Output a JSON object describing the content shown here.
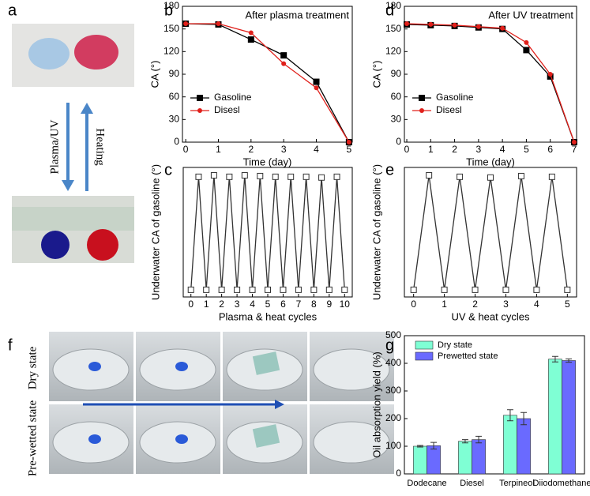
{
  "panel_labels": [
    "a",
    "b",
    "c",
    "d",
    "e",
    "f",
    "g"
  ],
  "photo_a": {
    "down_arrow": "Plasma/UV",
    "up_arrow": "Heating"
  },
  "photo_f": {
    "rows": [
      "Dry state",
      "Pre-wetted state"
    ]
  },
  "chart_data": [
    {
      "type": "line",
      "annotation": "After plasma treatment",
      "xlabel": "Time (day)",
      "ylabel": "CA (°)",
      "x": [
        0,
        1,
        2,
        3,
        4,
        5
      ],
      "xlim": [
        -0.1,
        5.1
      ],
      "xticks": [
        0,
        1,
        2,
        3,
        4,
        5
      ],
      "ylim": [
        0,
        180
      ],
      "yticks": [
        0,
        30,
        60,
        90,
        120,
        150,
        180
      ],
      "legend": "lower left",
      "series": [
        {
          "name": "Gasoline",
          "color": "#000000",
          "marker": "square",
          "values": [
            157,
            156,
            136,
            115,
            80,
            0
          ]
        },
        {
          "name": "Disesl",
          "color": "#e0201b",
          "marker": "circle",
          "values": [
            157,
            157,
            145,
            104,
            72,
            0
          ]
        }
      ]
    },
    {
      "type": "line",
      "annotation": "After UV treatment",
      "xlabel": "Time (day)",
      "ylabel": "CA (°)",
      "x": [
        0,
        1,
        2,
        3,
        4,
        5,
        6,
        7
      ],
      "xlim": [
        -0.1,
        7.1
      ],
      "xticks": [
        0,
        1,
        2,
        3,
        4,
        5,
        6,
        7
      ],
      "ylim": [
        0,
        180
      ],
      "yticks": [
        0,
        30,
        60,
        90,
        120,
        150,
        180
      ],
      "legend": "lower left",
      "series": [
        {
          "name": "Gasoline",
          "color": "#000000",
          "marker": "square",
          "values": [
            156,
            155,
            154,
            152,
            150,
            122,
            87,
            0
          ]
        },
        {
          "name": "Disesl",
          "color": "#e0201b",
          "marker": "circle",
          "values": [
            157,
            156,
            155,
            153,
            151,
            132,
            90,
            0
          ]
        }
      ]
    },
    {
      "type": "line",
      "xlabel": "Plasma & heat cycles",
      "ylabel": "Underwater CA of gasoline (°)",
      "x": [
        0,
        0.5,
        1,
        1.5,
        2,
        2.5,
        3,
        3.5,
        4,
        4.5,
        5,
        5.5,
        6,
        6.5,
        7,
        7.5,
        8,
        8.5,
        9,
        9.5,
        10
      ],
      "xlim": [
        -0.5,
        10.5
      ],
      "xticks": [
        0,
        1,
        2,
        3,
        4,
        5,
        6,
        7,
        8,
        9,
        10
      ],
      "ylim": [
        -10,
        170
      ],
      "series": [
        {
          "color": "#333333",
          "marker": "open-square",
          "values": [
            0,
            157,
            0,
            159,
            0,
            157,
            0,
            159,
            0,
            158,
            0,
            157,
            0,
            157,
            0,
            157,
            0,
            156,
            0,
            157,
            0
          ]
        }
      ]
    },
    {
      "type": "line",
      "xlabel": "UV & heat cycles",
      "ylabel": "Underwater CA of gasoline (°)",
      "x": [
        0,
        0.5,
        1,
        1.5,
        2,
        2.5,
        3,
        3.5,
        4,
        4.5,
        5
      ],
      "xlim": [
        -0.3,
        5.3
      ],
      "xticks": [
        0,
        1,
        2,
        3,
        4,
        5
      ],
      "ylim": [
        -10,
        170
      ],
      "series": [
        {
          "color": "#333333",
          "marker": "open-square",
          "values": [
            0,
            159,
            0,
            157,
            0,
            156,
            0,
            158,
            0,
            157,
            0
          ]
        }
      ]
    },
    {
      "type": "bar",
      "ylabel": "Oil absorption yield (%)",
      "categories": [
        "Dodecane",
        "Diesel",
        "Terpineol",
        "Diiodomethane"
      ],
      "ylim": [
        0,
        500
      ],
      "yticks": [
        0,
        100,
        200,
        300,
        400,
        500
      ],
      "legend": "upper left",
      "series": [
        {
          "name": "Dry state",
          "color": "#7fffd4",
          "values": [
            100,
            118,
            212,
            415
          ],
          "errors": [
            3,
            6,
            20,
            10
          ]
        },
        {
          "name": "Prewetted state",
          "color": "#6a6aff",
          "values": [
            102,
            124,
            200,
            410
          ],
          "errors": [
            12,
            12,
            22,
            6
          ]
        }
      ]
    }
  ]
}
